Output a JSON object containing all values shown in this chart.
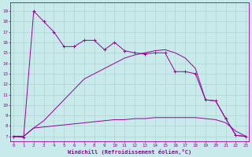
{
  "x": [
    0,
    1,
    2,
    3,
    4,
    5,
    6,
    7,
    8,
    9,
    10,
    11,
    12,
    13,
    14,
    15,
    16,
    17,
    18,
    19,
    20,
    21,
    22,
    23
  ],
  "line1_y": [
    7.0,
    6.9,
    19.0,
    18.0,
    17.0,
    15.6,
    15.6,
    16.2,
    16.2,
    15.3,
    16.0,
    15.2,
    15.0,
    14.9,
    15.0,
    15.0,
    13.2,
    13.2,
    13.0,
    10.5,
    10.4,
    8.7,
    7.1,
    7.0
  ],
  "line2_y": [
    7.0,
    7.0,
    7.8,
    8.5,
    9.5,
    10.5,
    11.5,
    12.5,
    13.0,
    13.5,
    14.0,
    14.5,
    14.8,
    15.0,
    15.2,
    15.3,
    15.0,
    14.5,
    13.5,
    10.5,
    10.4,
    8.7,
    7.1,
    7.0
  ],
  "line3_y": [
    7.0,
    7.0,
    7.8,
    7.9,
    8.0,
    8.1,
    8.2,
    8.3,
    8.4,
    8.5,
    8.6,
    8.6,
    8.7,
    8.7,
    8.8,
    8.8,
    8.8,
    8.8,
    8.8,
    8.7,
    8.6,
    8.3,
    7.5,
    7.0
  ],
  "color": "#990099",
  "bg_color": "#c8eaea",
  "grid_color": "#aacccc",
  "xlabel": "Windchill (Refroidissement éolien,°C)",
  "yticks": [
    7,
    8,
    9,
    10,
    11,
    12,
    13,
    14,
    15,
    16,
    17,
    18,
    19
  ],
  "xticks": [
    0,
    1,
    2,
    3,
    4,
    5,
    6,
    7,
    8,
    9,
    10,
    11,
    12,
    13,
    14,
    15,
    16,
    17,
    18,
    19,
    20,
    21,
    22,
    23
  ],
  "ylim": [
    6.5,
    19.8
  ],
  "xlim": [
    -0.3,
    23.3
  ]
}
